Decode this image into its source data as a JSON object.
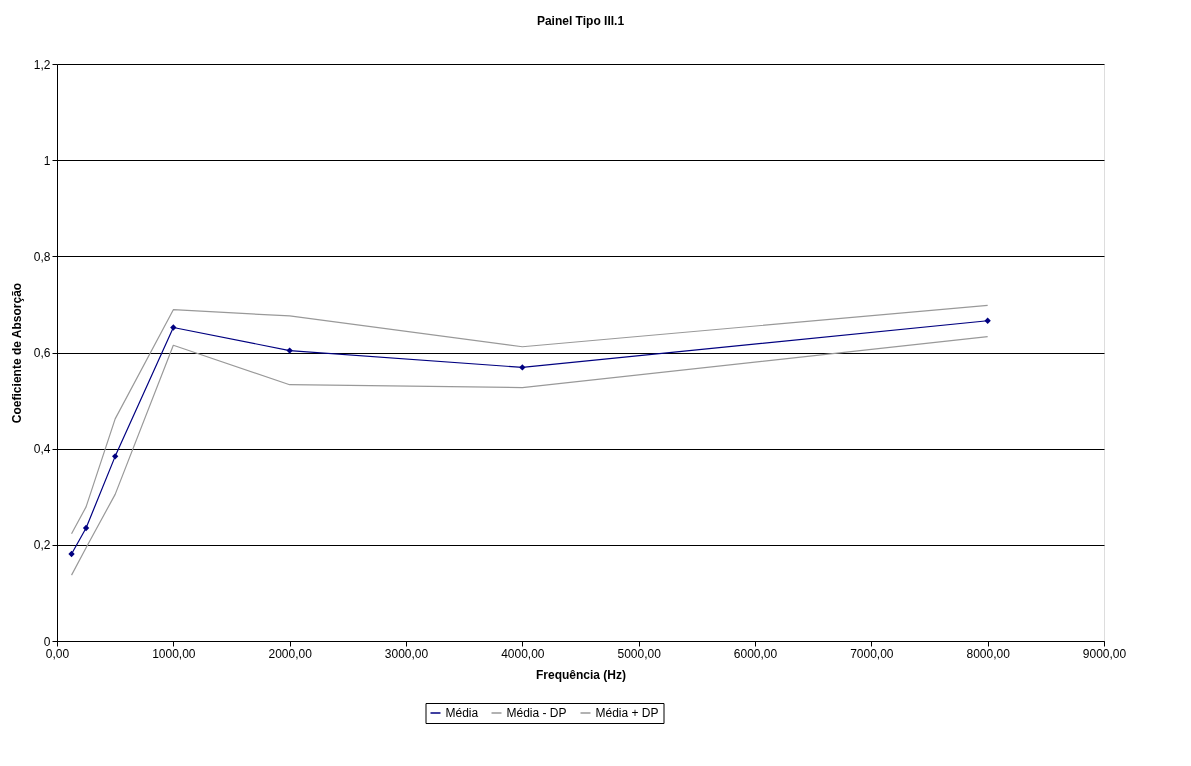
{
  "chart_data": {
    "type": "line",
    "title": "Painel Tipo III.1",
    "xlabel": "Frequência (Hz)",
    "ylabel": "Coeficiente de Absorção",
    "x": [
      125,
      250,
      500,
      1000,
      2000,
      4000,
      8000
    ],
    "series": [
      {
        "name": "Média",
        "color": "#000080",
        "marker": "diamond",
        "values": [
          0.181,
          0.235,
          0.384,
          0.652,
          0.604,
          0.569,
          0.666
        ]
      },
      {
        "name": "Média - DP",
        "color": "#999999",
        "marker": "none",
        "values": [
          0.137,
          0.194,
          0.305,
          0.615,
          0.533,
          0.527,
          0.633
        ]
      },
      {
        "name": "Média + DP",
        "color": "#999999",
        "marker": "none",
        "values": [
          0.223,
          0.279,
          0.462,
          0.689,
          0.676,
          0.612,
          0.698
        ]
      }
    ],
    "xlim": [
      0,
      9000
    ],
    "xticks": [
      {
        "value": 0,
        "label": "0,00"
      },
      {
        "value": 1000,
        "label": "1000,00"
      },
      {
        "value": 2000,
        "label": "2000,00"
      },
      {
        "value": 3000,
        "label": "3000,00"
      },
      {
        "value": 4000,
        "label": "4000,00"
      },
      {
        "value": 5000,
        "label": "5000,00"
      },
      {
        "value": 6000,
        "label": "6000,00"
      },
      {
        "value": 7000,
        "label": "7000,00"
      },
      {
        "value": 8000,
        "label": "8000,00"
      },
      {
        "value": 9000,
        "label": "9000,00"
      }
    ],
    "ylim": [
      0,
      1.2
    ],
    "yticks": [
      0,
      {
        "value": 0.2,
        "label": "0,2"
      },
      {
        "value": 0.4,
        "label": "0,4"
      },
      {
        "value": 0.6,
        "label": "0,6"
      },
      {
        "value": 0.8,
        "label": "0,8"
      },
      1,
      {
        "value": 1.2,
        "label": "1,2"
      }
    ],
    "grid": "y",
    "legend": "bottom",
    "line_style": "solid"
  }
}
